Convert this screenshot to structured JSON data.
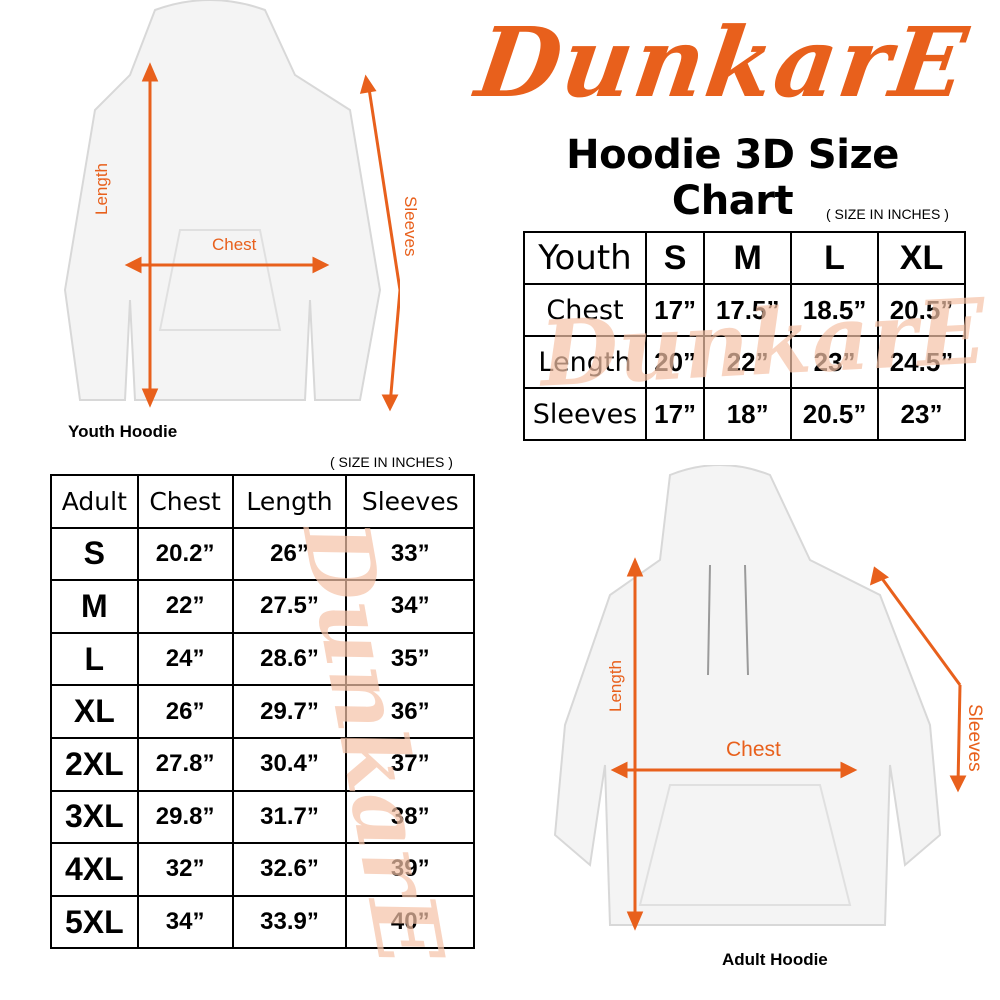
{
  "brand": {
    "logo": "DunkarE",
    "color": "#e8601c"
  },
  "title": "Hoodie 3D Size Chart",
  "youth": {
    "unit_note": "( SIZE IN INCHES )",
    "caption": "Youth Hoodie",
    "labels": {
      "length": "Length",
      "chest": "Chest",
      "sleeves": "Sleeves"
    },
    "headers": [
      "Youth",
      "S",
      "M",
      "L",
      "XL"
    ],
    "rows": [
      [
        "Chest",
        "17”",
        "17.5”",
        "18.5”",
        "20.5”"
      ],
      [
        "Length",
        "20”",
        "22”",
        "23”",
        "24.5”"
      ],
      [
        "Sleeves",
        "17”",
        "18”",
        "20.5”",
        "23”"
      ]
    ]
  },
  "adult": {
    "unit_note": "( SIZE IN INCHES )",
    "caption": "Adult Hoodie",
    "labels": {
      "length": "Length",
      "chest": "Chest",
      "sleeves": "Sleeves"
    },
    "headers": [
      "Adult",
      "Chest",
      "Length",
      "Sleeves"
    ],
    "rows": [
      [
        "S",
        "20.2”",
        "26”",
        "33”"
      ],
      [
        "M",
        "22”",
        "27.5”",
        "34”"
      ],
      [
        "L",
        "24”",
        "28.6”",
        "35”"
      ],
      [
        "XL",
        "26”",
        "29.7”",
        "36”"
      ],
      [
        "2XL",
        "27.8”",
        "30.4”",
        "37”"
      ],
      [
        "3XL",
        "29.8”",
        "31.7”",
        "38”"
      ],
      [
        "4XL",
        "32”",
        "32.6”",
        "39”"
      ],
      [
        "5XL",
        "34”",
        "33.9”",
        "40”"
      ]
    ]
  }
}
